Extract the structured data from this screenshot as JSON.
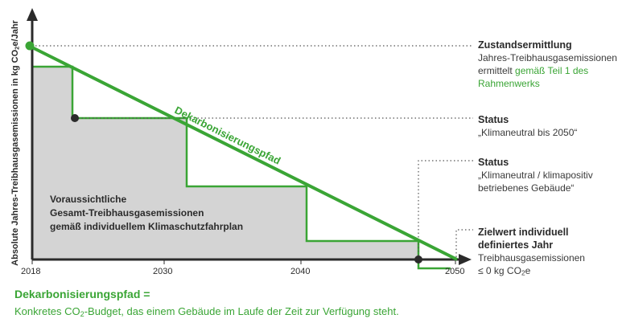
{
  "colors": {
    "accent_green": "#3aa535",
    "area_gray": "#d4d4d4",
    "axis": "#2b2b2b"
  },
  "y_axis_label_pre": "Absolute Jahres-Treibhausgasemissionen in kg CO",
  "y_axis_label_sub": "2",
  "y_axis_label_post": "e/Jahr",
  "x_ticks": [
    "2018",
    "2030",
    "2040",
    "2050"
  ],
  "path_label": "Dekarbonisierungspfad",
  "stair_label": [
    "Voraussichtliche",
    "Gesamt-Treibhausgasemissionen",
    "gemäß individuellem Klimaschutzfahrplan"
  ],
  "annotations": {
    "zustand": {
      "title": "Zustandsermittlung",
      "line1": "Jahres-Treibhausgasemissionen",
      "line2_plain": "ermittelt ",
      "line2_green": "gemäß Teil 1 des",
      "line3_green": "Rahmenwerks"
    },
    "status1": {
      "title": "Status",
      "text": "„Klimaneutral bis 2050“"
    },
    "status2": {
      "title": "Status",
      "line1": "„Klimaneutral / klimapositiv",
      "line2": "betriebenes Gebäude“"
    },
    "ziel": {
      "title1": "Zielwert individuell",
      "title2": "definiertes Jahr",
      "line1": "Treibhausgasemissionen",
      "line2_pre": "≤ 0 kg CO",
      "line2_sub": "2",
      "line2_post": "e"
    }
  },
  "definition": {
    "title": "Dekarbonisierungspfad =",
    "text_pre": "Konkretes CO",
    "text_sub": "2",
    "text_post": "-Budget, das einem Gebäude im Laufe der Zeit zur Verfügung steht."
  }
}
